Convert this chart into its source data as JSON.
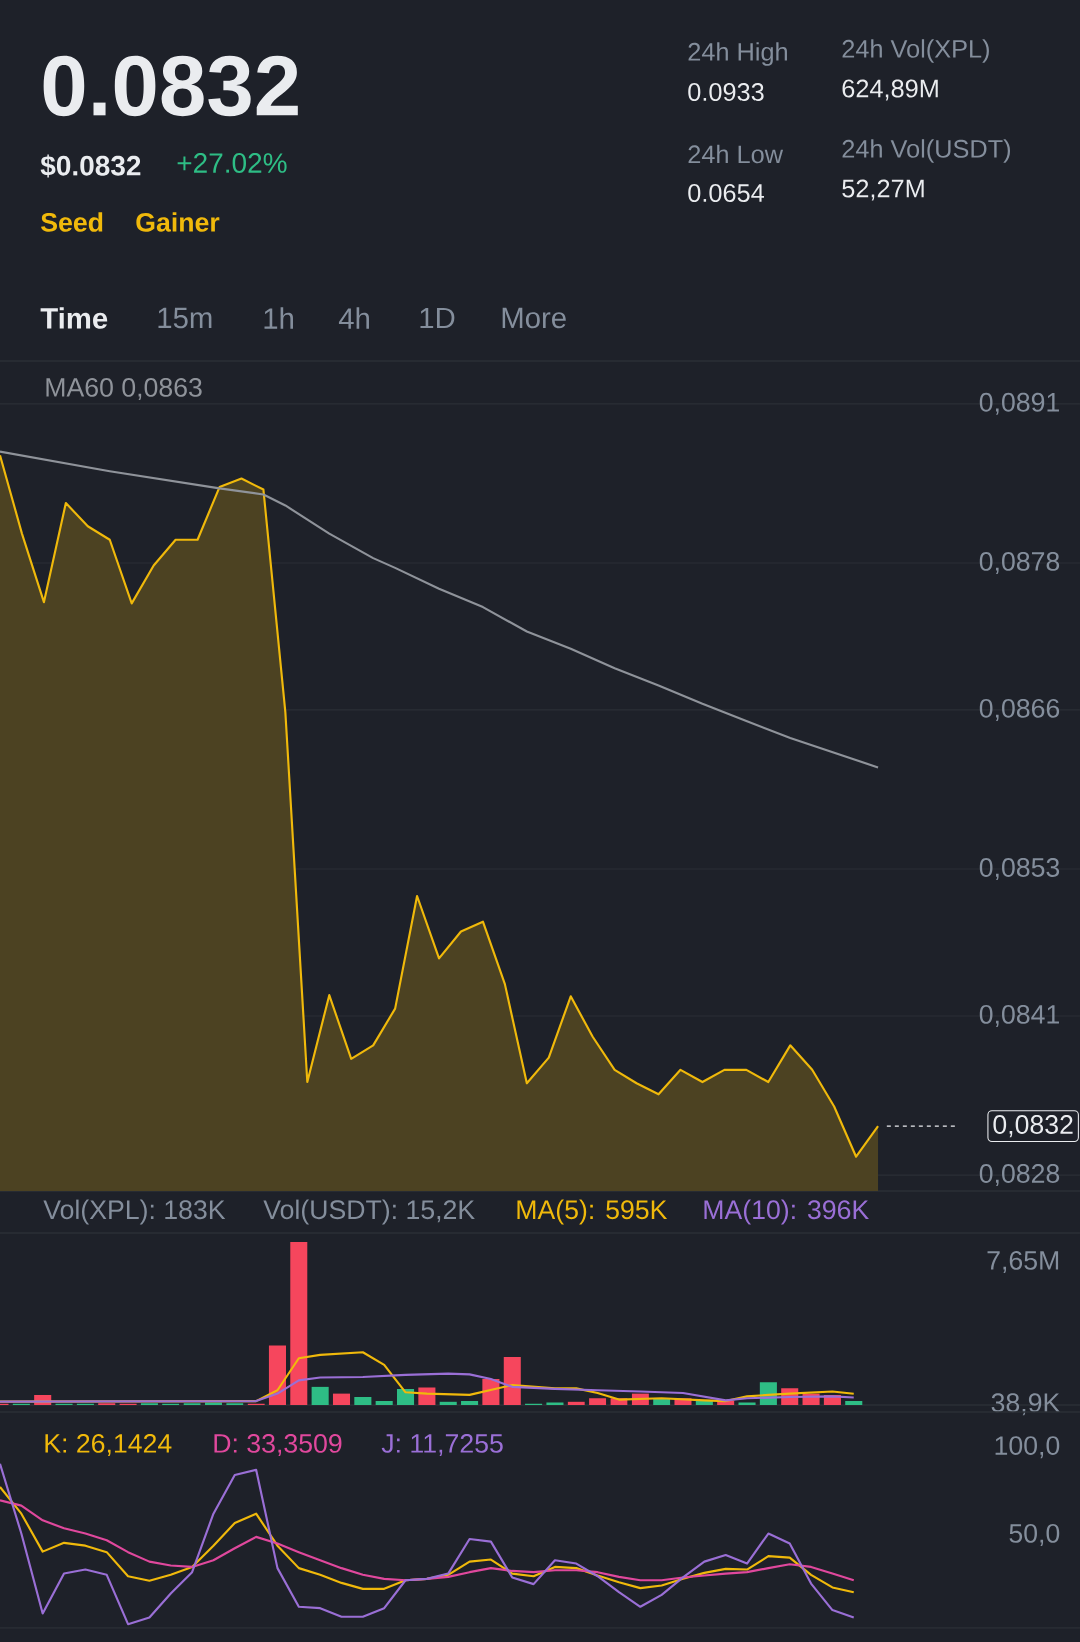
{
  "chart_data": [
    {
      "type": "other",
      "annotations": [
        "0.0832",
        "$0.0832",
        "+27.02%",
        "Seed",
        "Gainer",
        "24h High",
        "0.0933",
        "24h Low",
        "0.0654",
        "24h Vol(XPL)",
        "624,89M",
        "24h Vol(USDT)",
        "52,27M",
        "Time",
        "15m",
        "1h",
        "4h",
        "1D",
        "More"
      ]
    },
    {
      "type": "area",
      "categories": [
        null,
        null,
        null,
        null,
        null,
        null,
        null,
        null,
        null,
        null,
        null,
        null,
        null,
        null,
        null,
        null,
        null,
        null,
        null,
        null,
        null,
        null,
        null,
        null,
        null,
        null,
        null,
        null,
        null,
        null,
        null,
        null,
        null,
        null,
        null,
        null,
        null,
        null,
        null,
        null,
        null
      ],
      "series": [
        {
          "color": "#f0b90b",
          "values": [
            0.08868,
            0.08804,
            0.08748,
            0.08829,
            0.0881,
            0.08799,
            0.08747,
            0.08778,
            0.08799,
            0.08799,
            0.08842,
            0.08849,
            0.0884,
            0.08658,
            0.08356,
            0.08427,
            0.08375,
            0.08386,
            0.08416,
            0.08508,
            0.08457,
            0.08479,
            0.08487,
            0.08436,
            0.08355,
            0.08376,
            0.08426,
            0.08393,
            0.08366,
            0.08355,
            0.08346,
            0.08366,
            0.08356,
            0.08366,
            0.08366,
            0.08356,
            0.08386,
            0.08366,
            0.08336,
            0.08295,
            0.0832
          ]
        },
        {
          "type": "line",
          "name": "MA60 0,0863",
          "color": "#8f939a",
          "values": [
            0.08871,
            null,
            null,
            null,
            null,
            0.08855,
            null,
            null,
            null,
            null,
            0.08841,
            null,
            0.08836,
            0.08827,
            null,
            0.08804,
            null,
            0.08784,
            0.08776,
            null,
            0.08759,
            null,
            0.08744,
            null,
            0.08724,
            null,
            0.0871,
            null,
            0.08694,
            null,
            0.0868,
            null,
            0.08665,
            null,
            0.08651,
            null,
            0.08637,
            null,
            0.08625,
            null,
            0.08613
          ]
        }
      ],
      "ylim": [
        0.08267,
        0.08945
      ],
      "yticks": [
        {
          "value": 0.0891,
          "label": "0,0891"
        },
        {
          "value": 0.0878,
          "label": "0,0878"
        },
        {
          "value": 0.0866,
          "label": "0,0866"
        },
        {
          "value": 0.0853,
          "label": "0,0853"
        },
        {
          "value": 0.0841,
          "label": "0,0841"
        },
        {
          "value": 0.0828,
          "label": "0,0828"
        }
      ],
      "grid": "y",
      "tick_labels": "y",
      "ref_lines": [
        {
          "axis": "y",
          "value": 0.0832,
          "label": "0,0832",
          "line_style": "dashed",
          "color": "#eaecef"
        }
      ]
    },
    {
      "type": "bar",
      "categories": [
        null,
        null,
        null,
        null,
        null,
        null,
        null,
        null,
        null,
        null,
        null,
        null,
        null,
        null,
        null,
        null,
        null,
        null,
        null,
        null,
        null,
        null,
        null,
        null,
        null,
        null,
        null,
        null,
        null,
        null,
        null,
        null,
        null,
        null,
        null,
        null,
        null,
        null,
        null,
        null,
        null
      ],
      "series": [
        {
          "type": "bar",
          "values": [
            70000,
            70000,
            540000,
            70000,
            70000,
            100000,
            70000,
            100000,
            70000,
            100000,
            140000,
            100000,
            70000,
            3180000,
            8720000,
            970000,
            610000,
            430000,
            210000,
            860000,
            930000,
            180000,
            210000,
            1390000,
            2570000,
            70000,
            140000,
            180000,
            360000,
            360000,
            610000,
            360000,
            360000,
            210000,
            210000,
            140000,
            1220000,
            890000,
            610000,
            540000,
            210000
          ],
          "colors": [
            "#f6465d",
            "#2ebd85",
            "#f6465d",
            "#2ebd85",
            "#2ebd85",
            "#f6465d",
            "#f6465d",
            "#2ebd85",
            "#2ebd85",
            "#2ebd85",
            "#2ebd85",
            "#2ebd85",
            "#f6465d",
            "#f6465d",
            "#f6465d",
            "#2ebd85",
            "#f6465d",
            "#2ebd85",
            "#2ebd85",
            "#2ebd85",
            "#f6465d",
            "#2ebd85",
            "#2ebd85",
            "#f6465d",
            "#f6465d",
            "#2ebd85",
            "#2ebd85",
            "#f6465d",
            "#f6465d",
            "#f6465d",
            "#f6465d",
            "#2ebd85",
            "#f6465d",
            "#2ebd85",
            "#f6465d",
            "#2ebd85",
            "#2ebd85",
            "#f6465d",
            "#f6465d",
            "#f6465d",
            "#2ebd85"
          ]
        },
        {
          "type": "line",
          "name": "MA(5): 595K",
          "color": "#f0b90b",
          "values": [
            180000,
            null,
            null,
            null,
            null,
            null,
            null,
            null,
            null,
            null,
            null,
            null,
            210000,
            790000,
            2500000,
            2680000,
            null,
            2820000,
            2150000,
            680000,
            610000,
            null,
            540000,
            null,
            1070000,
            null,
            890000,
            890000,
            640000,
            290000,
            null,
            360000,
            null,
            250000,
            210000,
            460000,
            540000,
            610000,
            null,
            720000,
            600000
          ]
        },
        {
          "type": "line",
          "name": "MA(10): 396K",
          "color": "#9a6fd6",
          "values": [
            180000,
            null,
            null,
            null,
            null,
            null,
            null,
            null,
            null,
            null,
            null,
            null,
            210000,
            610000,
            1320000,
            1470000,
            null,
            1500000,
            null,
            1610000,
            null,
            1680000,
            1640000,
            1390000,
            970000,
            null,
            860000,
            null,
            790000,
            null,
            720000,
            null,
            640000,
            null,
            250000,
            360000,
            null,
            430000,
            null,
            460000,
            400000
          ]
        }
      ],
      "ylim": [
        0,
        9200000
      ],
      "yticks": [
        {
          "value": 38900,
          "label": "38,9K"
        },
        {
          "value": 7650000,
          "label": "7,65M"
        }
      ],
      "tick_labels": "y",
      "annotations": [
        "Vol(XPL): 183K",
        "Vol(USDT): 15,2K"
      ]
    },
    {
      "type": "line",
      "categories": [
        null,
        null,
        null,
        null,
        null,
        null,
        null,
        null,
        null,
        null,
        null,
        null,
        null,
        null,
        null,
        null,
        null,
        null,
        null,
        null,
        null,
        null,
        null,
        null,
        null,
        null,
        null,
        null,
        null,
        null,
        null,
        null,
        null,
        null,
        null,
        null,
        null,
        null,
        null,
        null,
        null
      ],
      "series": [
        {
          "name": "K: 26,1424",
          "color": "#f0b90b",
          "values": [
            77.3,
            62.1,
            40.5,
            45.5,
            43.9,
            40.2,
            26.5,
            23.9,
            27.3,
            31.8,
            43.9,
            56.8,
            62.1,
            43.9,
            31.1,
            27.3,
            22.7,
            19.3,
            19.3,
            24.2,
            25.0,
            27.3,
            34.8,
            36.0,
            28.0,
            26.5,
            31.8,
            31.1,
            26.9,
            23.1,
            19.7,
            21.2,
            25.0,
            28.4,
            30.7,
            30.3,
            37.9,
            37.1,
            27.3,
            20.1,
            17.4
          ]
        },
        {
          "name": "D: 33,3509",
          "color": "#e0489d",
          "values": [
            69.7,
            66.7,
            58.3,
            53.8,
            50.8,
            47.0,
            40.2,
            34.8,
            32.6,
            31.8,
            35.6,
            42.4,
            48.9,
            45.1,
            40.2,
            35.6,
            31.1,
            27.3,
            25.0,
            24.2,
            25.0,
            26.1,
            28.8,
            31.1,
            29.5,
            28.8,
            29.9,
            29.9,
            28.8,
            26.1,
            24.2,
            24.2,
            25.8,
            26.9,
            28.0,
            28.8,
            31.1,
            33.3,
            31.8,
            28.0,
            24.2
          ]
        },
        {
          "name": "J: 11,7255",
          "color": "#9a6fd6",
          "values": [
            90.5,
            50.8,
            5.3,
            28.0,
            30.3,
            27.3,
            -0.8,
            3.0,
            16.7,
            28.8,
            62.1,
            84.1,
            87.1,
            31.1,
            9.1,
            8.3,
            3.4,
            3.4,
            8.3,
            24.2,
            25.0,
            28.0,
            47.7,
            46.2,
            25.8,
            22.0,
            35.6,
            33.7,
            26.5,
            17.4,
            9.1,
            15.9,
            25.8,
            34.8,
            38.6,
            33.7,
            50.8,
            45.1,
            22.3,
            7.2,
            3.0
          ]
        }
      ],
      "ylim": [
        -3,
        120
      ],
      "yticks": [
        {
          "value": 100,
          "label": "100,0"
        },
        {
          "value": 50,
          "label": "50,0"
        }
      ],
      "tick_labels": "y"
    }
  ]
}
